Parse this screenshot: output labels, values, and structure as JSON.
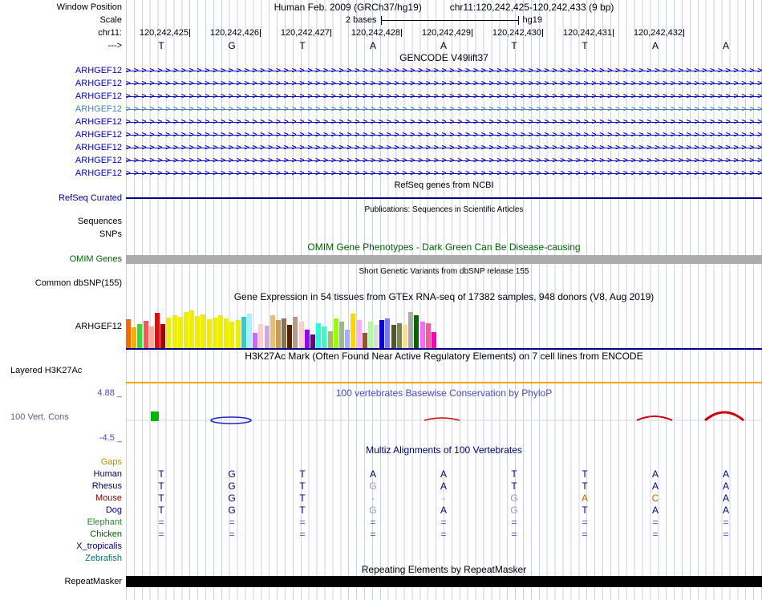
{
  "header": {
    "assembly_title": "Human Feb. 2009 (GRCh37/hg19)",
    "position": "chr11:120,242,425-120,242,433 (9 bp)",
    "window_position_label": "Window Position",
    "scale_label": "Scale",
    "scale_value": "2 bases",
    "scale_assembly": "hg19",
    "chrom_label": "chr11:",
    "strand_label": "--->"
  },
  "ruler": {
    "coordinates": [
      "120,242,425",
      "120,242,426",
      "120,242,427",
      "120,242,428",
      "120,242,429",
      "120,242,430",
      "120,242,431",
      "120,242,432"
    ]
  },
  "sequence": {
    "bases": [
      "T",
      "G",
      "T",
      "A",
      "A",
      "T",
      "T",
      "A",
      "A"
    ]
  },
  "gencode": {
    "title": "GENCODE V49lift37",
    "arrow_glyph": ">",
    "rows": [
      {
        "label": "ARHGEF12",
        "variant": "normal"
      },
      {
        "label": "ARHGEF12",
        "variant": "normal"
      },
      {
        "label": "ARHGEF12",
        "variant": "normal"
      },
      {
        "label": "ARHGEF12",
        "variant": "light"
      },
      {
        "label": "ARHGEF12",
        "variant": "normal"
      },
      {
        "label": "ARHGEF12",
        "variant": "normal"
      },
      {
        "label": "ARHGEF12",
        "variant": "normal"
      },
      {
        "label": "ARHGEF12",
        "variant": "normal"
      },
      {
        "label": "ARHGEF12",
        "variant": "normal"
      }
    ]
  },
  "refseq": {
    "title": "RefSeq genes from NCBI",
    "label": "RefSeq Curated"
  },
  "publications": {
    "title": "Publications: Sequences in Scientific Articles",
    "sequences_label": "Sequences",
    "snps_label": "SNPs"
  },
  "omim": {
    "title": "OMIM Gene Phenotypes - Dark Green Can Be Disease-causing",
    "label": "OMIM Genes"
  },
  "dbsnp": {
    "title": "Short Genetic Variants from dbSNP release 155",
    "label": "Common dbSNP(155)"
  },
  "gtex": {
    "label": "ARHGEF12"
  },
  "h3k27ac": {
    "title": "H3K27Ac Mark (Often Found Near Active Regulatory Elements) on 7 cell lines from ENCODE",
    "label": "Layered H3K27Ac"
  },
  "conservation": {
    "title": "100 vertebrates Basewise Conservation by PhyloP",
    "label": "100 Vert. Cons",
    "max_value": "4.88 _",
    "min_value": "-4.5 _"
  },
  "multiz": {
    "title": "Multiz Alignments of 100 Vertebrates",
    "gaps_label": "Gaps",
    "species": [
      {
        "name": "Human",
        "color": "#000080",
        "cells": [
          [
            "T",
            "n"
          ],
          [
            "G",
            "n"
          ],
          [
            "T",
            "n"
          ],
          [
            "A",
            "n"
          ],
          [
            "A",
            "n"
          ],
          [
            "T",
            "n"
          ],
          [
            "T",
            "n"
          ],
          [
            "A",
            "n"
          ],
          [
            "A",
            "n"
          ]
        ]
      },
      {
        "name": "Rhesus",
        "color": "#000080",
        "cells": [
          [
            "T",
            "n"
          ],
          [
            "G",
            "n"
          ],
          [
            "T",
            "n"
          ],
          [
            "G",
            "g"
          ],
          [
            "A",
            "n"
          ],
          [
            "T",
            "n"
          ],
          [
            "T",
            "n"
          ],
          [
            "A",
            "n"
          ],
          [
            "A",
            "n"
          ]
        ]
      },
      {
        "name": "Mouse",
        "color": "#8B0000",
        "cells": [
          [
            "T",
            "n"
          ],
          [
            "G",
            "n"
          ],
          [
            "T",
            "n"
          ],
          [
            "-",
            "g"
          ],
          [
            "-",
            "g"
          ],
          [
            "G",
            "g"
          ],
          [
            "A",
            "o"
          ],
          [
            "C",
            "o"
          ],
          [
            "A",
            "n"
          ]
        ]
      },
      {
        "name": "Dog",
        "color": "#000080",
        "cells": [
          [
            "T",
            "n"
          ],
          [
            "G",
            "n"
          ],
          [
            "T",
            "n"
          ],
          [
            "G",
            "g"
          ],
          [
            "A",
            "n"
          ],
          [
            "G",
            "g"
          ],
          [
            "T",
            "n"
          ],
          [
            "A",
            "n"
          ],
          [
            "A",
            "n"
          ]
        ]
      },
      {
        "name": "Elephant",
        "color": "#228B22",
        "cells": [
          [
            "=",
            "e"
          ],
          [
            "=",
            "e"
          ],
          [
            "=",
            "e"
          ],
          [
            "=",
            "e"
          ],
          [
            "=",
            "e"
          ],
          [
            "=",
            "e"
          ],
          [
            "=",
            "e"
          ],
          [
            "=",
            "e"
          ],
          [
            "=",
            "e"
          ]
        ]
      },
      {
        "name": "Chicken",
        "color": "#006400",
        "cells": [
          [
            "=",
            "e"
          ],
          [
            "=",
            "e"
          ],
          [
            "=",
            "e"
          ],
          [
            "=",
            "e"
          ],
          [
            "=",
            "e"
          ],
          [
            "=",
            "e"
          ],
          [
            "=",
            "e"
          ],
          [
            "=",
            "e"
          ],
          [
            "=",
            "e"
          ]
        ]
      },
      {
        "name": "X_tropicalis",
        "color": "#000080",
        "cells": [
          [
            "",
            "n"
          ],
          [
            "",
            "n"
          ],
          [
            "",
            "n"
          ],
          [
            "",
            "n"
          ],
          [
            "",
            "n"
          ],
          [
            "",
            "n"
          ],
          [
            "",
            "n"
          ],
          [
            "",
            "n"
          ],
          [
            "",
            "n"
          ]
        ]
      },
      {
        "name": "Zebrafish",
        "color": "#007070",
        "cells": [
          [
            "",
            "n"
          ],
          [
            "",
            "n"
          ],
          [
            "",
            "n"
          ],
          [
            "",
            "n"
          ],
          [
            "",
            "n"
          ],
          [
            "",
            "n"
          ],
          [
            "",
            "n"
          ],
          [
            "",
            "n"
          ],
          [
            "",
            "n"
          ]
        ]
      }
    ]
  },
  "repeatmasker": {
    "title": "Repeating Elements by RepeatMasker",
    "label": "RepeatMasker"
  },
  "chart_data": {
    "type": "bar",
    "title": "Gene Expression in 54 tissues from GTEx RNA-seq of 17382 samples, 948 donors (V8, Aug 2019)",
    "gene": "ARHGEF12",
    "n_bars": 54,
    "values": [
      36,
      26,
      30,
      34,
      27,
      44,
      30,
      38,
      41,
      39,
      45,
      47,
      40,
      42,
      36,
      38,
      41,
      37,
      33,
      35,
      39,
      43,
      19,
      30,
      28,
      41,
      35,
      37,
      29,
      39,
      33,
      23,
      17,
      31,
      27,
      21,
      37,
      33,
      23,
      43,
      35,
      19,
      33,
      29,
      35,
      37,
      29,
      31,
      29,
      45,
      41,
      33,
      31,
      20
    ],
    "colors": [
      "#FF6600",
      "#FFAA00",
      "#33DD33",
      "#FF5555",
      "#FFAA99",
      "#FF0000",
      "#AA0000",
      "#EEEE00",
      "#EEEE00",
      "#EEEE00",
      "#EEEE00",
      "#EEEE00",
      "#EEEE00",
      "#EEEE00",
      "#EEEE00",
      "#EEEE00",
      "#EEEE00",
      "#EEEE00",
      "#EEEE00",
      "#EEEE00",
      "#33CCCC",
      "#AAEEFF",
      "#CC66FF",
      "#FFCCCC",
      "#CCAADD",
      "#EEBB77",
      "#CC9955",
      "#8B7355",
      "#552200",
      "#BB9988",
      "#FFCCCC",
      "#9900FF",
      "#660099",
      "#22FFDD",
      "#33FFC2",
      "#AABB66",
      "#99FF00",
      "#99BB88",
      "#AAAAFF",
      "#FFD700",
      "#FFAAFF",
      "#995522",
      "#AAFF99",
      "#DDDDDD",
      "#0000FF",
      "#7777FF",
      "#555522",
      "#778855",
      "#FFDD99",
      "#AAAAAA",
      "#006600",
      "#FF66FF",
      "#FF5599",
      "#FF00BB"
    ],
    "ylim": [
      0,
      50
    ]
  },
  "colors": {
    "gene_blue": "#0000C8",
    "gene_light_blue": "#4682B4",
    "refseq_navy": "#000080",
    "omim_green": "#006400",
    "omim_bar_gray": "#ACACAC",
    "h3k27ac_orange": "#FFA000",
    "conservation_blue": "#4848D0",
    "multiz_navy": "#000080",
    "gaps_orange": "#C08A00",
    "grid_line": "#C8D2EA",
    "baseline_navy": "#000080"
  }
}
